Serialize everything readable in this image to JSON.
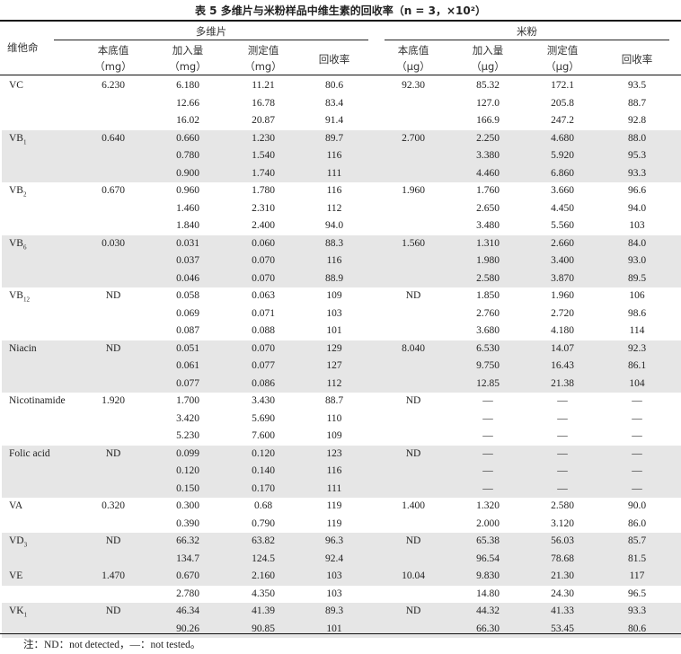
{
  "title": "表 5   多维片与米粉样品中维生素的回收率（n = 3，×10²）",
  "header": {
    "vitamin": "维他命",
    "group1": "多维片",
    "group2": "米粉",
    "cols": [
      {
        "label": "本底值",
        "unit": "（mg）"
      },
      {
        "label": "加入量",
        "unit": "（mg）"
      },
      {
        "label": "测定值",
        "unit": "（mg）"
      },
      {
        "label": "回收率",
        "unit": ""
      },
      {
        "label": "本底值",
        "unit": "（μg）"
      },
      {
        "label": "加入量",
        "unit": "（μg）"
      },
      {
        "label": "测定值",
        "unit": "（μg）"
      },
      {
        "label": "回收率",
        "unit": ""
      }
    ]
  },
  "rows": [
    {
      "name": "VC",
      "sub": "",
      "shade": false,
      "cells": [
        "6.230",
        "6.180",
        "11.21",
        "80.6",
        "92.30",
        "85.32",
        "172.1",
        "93.5"
      ]
    },
    {
      "name": "",
      "sub": "",
      "shade": false,
      "cells": [
        "",
        "12.66",
        "16.78",
        "83.4",
        "",
        "127.0",
        "205.8",
        "88.7"
      ]
    },
    {
      "name": "",
      "sub": "",
      "shade": false,
      "cells": [
        "",
        "16.02",
        "20.87",
        "91.4",
        "",
        "166.9",
        "247.2",
        "92.8"
      ]
    },
    {
      "name": "VB",
      "sub": "1",
      "shade": true,
      "cells": [
        "0.640",
        "0.660",
        "1.230",
        "89.7",
        "2.700",
        "2.250",
        "4.680",
        "88.0"
      ]
    },
    {
      "name": "",
      "sub": "",
      "shade": true,
      "cells": [
        "",
        "0.780",
        "1.540",
        "116",
        "",
        "3.380",
        "5.920",
        "95.3"
      ]
    },
    {
      "name": "",
      "sub": "",
      "shade": true,
      "cells": [
        "",
        "0.900",
        "1.740",
        "111",
        "",
        "4.460",
        "6.860",
        "93.3"
      ]
    },
    {
      "name": "VB",
      "sub": "2",
      "shade": false,
      "cells": [
        "0.670",
        "0.960",
        "1.780",
        "116",
        "1.960",
        "1.760",
        "3.660",
        "96.6"
      ]
    },
    {
      "name": "",
      "sub": "",
      "shade": false,
      "cells": [
        "",
        "1.460",
        "2.310",
        "112",
        "",
        "2.650",
        "4.450",
        "94.0"
      ]
    },
    {
      "name": "",
      "sub": "",
      "shade": false,
      "cells": [
        "",
        "1.840",
        "2.400",
        "94.0",
        "",
        "3.480",
        "5.560",
        "103"
      ]
    },
    {
      "name": "VB",
      "sub": "6",
      "shade": true,
      "cells": [
        "0.030",
        "0.031",
        "0.060",
        "88.3",
        "1.560",
        "1.310",
        "2.660",
        "84.0"
      ]
    },
    {
      "name": "",
      "sub": "",
      "shade": true,
      "cells": [
        "",
        "0.037",
        "0.070",
        "116",
        "",
        "1.980",
        "3.400",
        "93.0"
      ]
    },
    {
      "name": "",
      "sub": "",
      "shade": true,
      "cells": [
        "",
        "0.046",
        "0.070",
        "88.9",
        "",
        "2.580",
        "3.870",
        "89.5"
      ]
    },
    {
      "name": "VB",
      "sub": "12",
      "shade": false,
      "cells": [
        "ND",
        "0.058",
        "0.063",
        "109",
        "ND",
        "1.850",
        "1.960",
        "106"
      ]
    },
    {
      "name": "",
      "sub": "",
      "shade": false,
      "cells": [
        "",
        "0.069",
        "0.071",
        "103",
        "",
        "2.760",
        "2.720",
        "98.6"
      ]
    },
    {
      "name": "",
      "sub": "",
      "shade": false,
      "cells": [
        "",
        "0.087",
        "0.088",
        "101",
        "",
        "3.680",
        "4.180",
        "114"
      ]
    },
    {
      "name": "Niacin",
      "sub": "",
      "shade": true,
      "cells": [
        "ND",
        "0.051",
        "0.070",
        "129",
        "8.040",
        "6.530",
        "14.07",
        "92.3"
      ]
    },
    {
      "name": "",
      "sub": "",
      "shade": true,
      "cells": [
        "",
        "0.061",
        "0.077",
        "127",
        "",
        "9.750",
        "16.43",
        "86.1"
      ]
    },
    {
      "name": "",
      "sub": "",
      "shade": true,
      "cells": [
        "",
        "0.077",
        "0.086",
        "112",
        "",
        "12.85",
        "21.38",
        "104"
      ]
    },
    {
      "name": "Nicotinamide",
      "sub": "",
      "shade": false,
      "cells": [
        "1.920",
        "1.700",
        "3.430",
        "88.7",
        "ND",
        "—",
        "—",
        "—"
      ]
    },
    {
      "name": "",
      "sub": "",
      "shade": false,
      "cells": [
        "",
        "3.420",
        "5.690",
        "110",
        "",
        "—",
        "—",
        "—"
      ]
    },
    {
      "name": "",
      "sub": "",
      "shade": false,
      "cells": [
        "",
        "5.230",
        "7.600",
        "109",
        "",
        "—",
        "—",
        "—"
      ]
    },
    {
      "name": "Folic acid",
      "sub": "",
      "shade": true,
      "cells": [
        "ND",
        "0.099",
        "0.120",
        "123",
        "ND",
        "—",
        "—",
        "—"
      ]
    },
    {
      "name": "",
      "sub": "",
      "shade": true,
      "cells": [
        "",
        "0.120",
        "0.140",
        "116",
        "",
        "—",
        "—",
        "—"
      ]
    },
    {
      "name": "",
      "sub": "",
      "shade": true,
      "cells": [
        "",
        "0.150",
        "0.170",
        "111",
        "",
        "—",
        "—",
        "—"
      ]
    },
    {
      "name": "VA",
      "sub": "",
      "shade": false,
      "cells": [
        "0.320",
        "0.300",
        "0.68",
        "119",
        "1.400",
        "1.320",
        "2.580",
        "90.0"
      ]
    },
    {
      "name": "",
      "sub": "",
      "shade": false,
      "cells": [
        "",
        "0.390",
        "0.790",
        "119",
        "",
        "2.000",
        "3.120",
        "86.0"
      ]
    },
    {
      "name": "VD",
      "sub": "3",
      "shade": true,
      "cells": [
        "ND",
        "66.32",
        "63.82",
        "96.3",
        "ND",
        "65.38",
        "56.03",
        "85.7"
      ]
    },
    {
      "name": "",
      "sub": "",
      "shade": true,
      "cells": [
        "",
        "134.7",
        "124.5",
        "92.4",
        "",
        "96.54",
        "78.68",
        "81.5"
      ]
    },
    {
      "name": "VE",
      "sub": "",
      "shade": true,
      "cells": [
        "1.470",
        "0.670",
        "2.160",
        "103",
        "10.04",
        "9.830",
        "21.30",
        "117"
      ]
    },
    {
      "name": "",
      "sub": "",
      "shade": false,
      "cells": [
        "",
        "2.780",
        "4.350",
        "103",
        "",
        "14.80",
        "24.30",
        "96.5"
      ]
    },
    {
      "name": "VK",
      "sub": "1",
      "shade": true,
      "cells": [
        "ND",
        "46.34",
        "41.39",
        "89.3",
        "ND",
        "44.32",
        "41.33",
        "93.3"
      ]
    },
    {
      "name": "",
      "sub": "",
      "shade": true,
      "cells": [
        "",
        "90.26",
        "90.85",
        "101",
        "",
        "66.30",
        "53.45",
        "80.6"
      ]
    }
  ],
  "note": "注：ND：not detected，—：not tested。"
}
